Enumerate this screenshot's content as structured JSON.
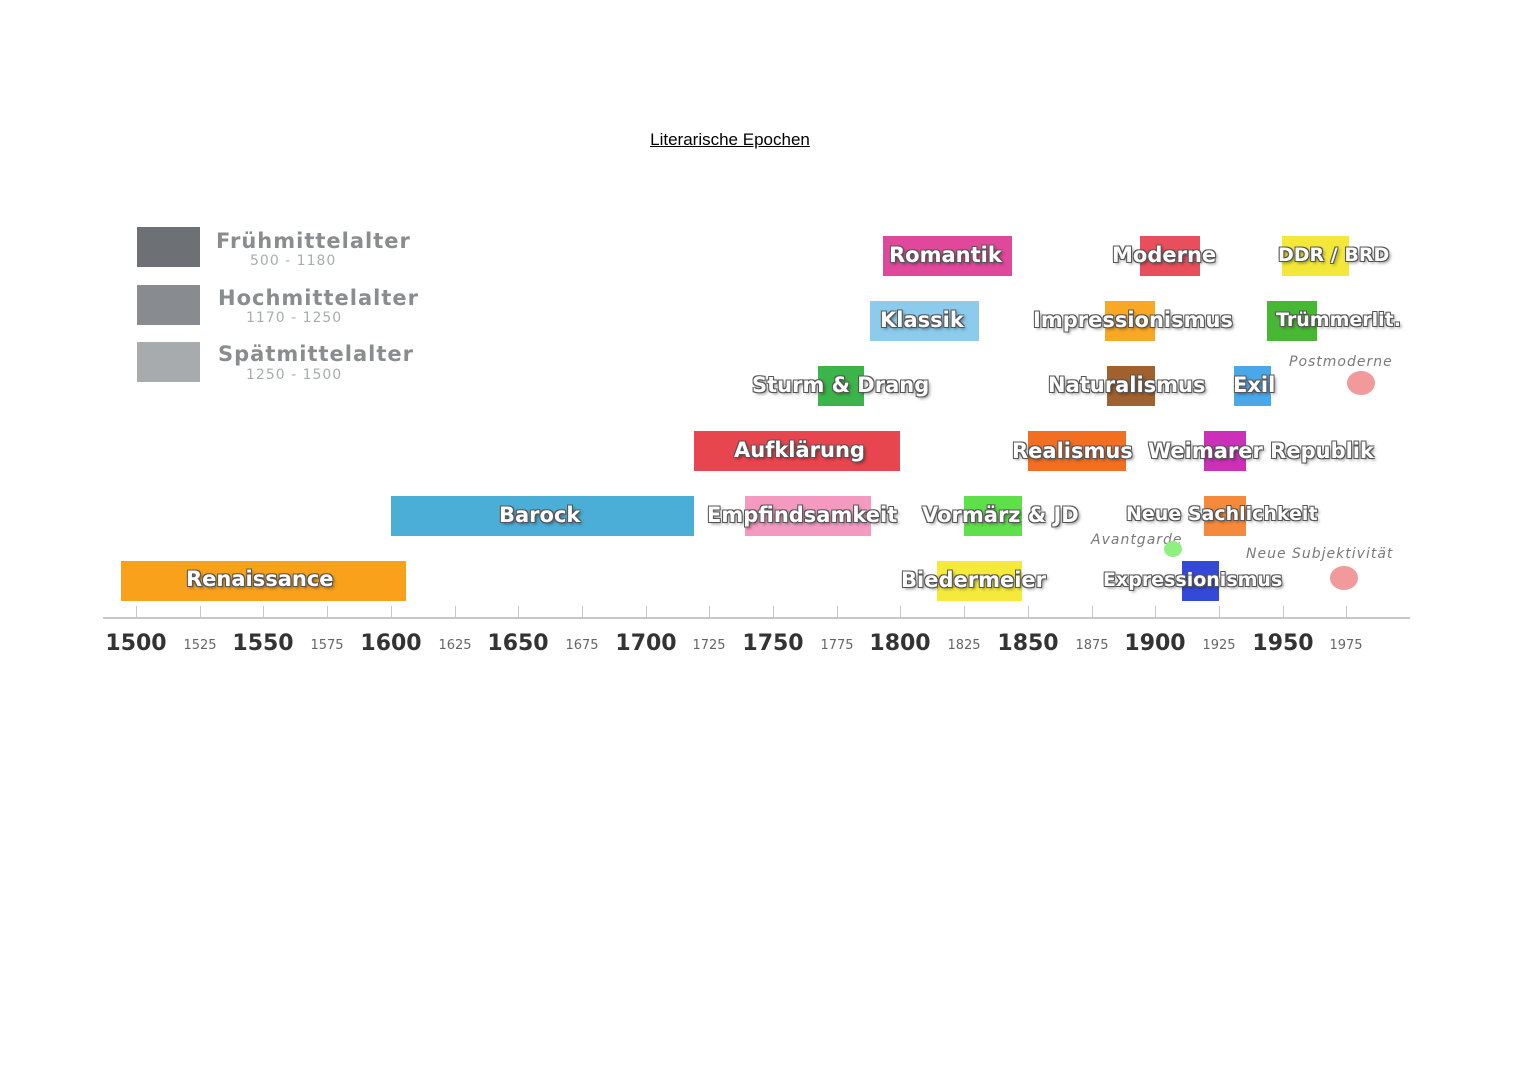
{
  "title": "Literarische Epochen",
  "legend": [
    {
      "name": "Frühmittelalter",
      "range": "500 - 1180",
      "color": "#6d7175"
    },
    {
      "name": "Hochmittelalter",
      "range": "1170 - 1250",
      "color": "#888c90"
    },
    {
      "name": "Spätmittelalter",
      "range": "1250 - 1500",
      "color": "#a7abae"
    }
  ],
  "epochs": {
    "renaissance": {
      "label": "Renaissance",
      "color": "#f9a11b"
    },
    "barock": {
      "label": "Barock",
      "color": "#4baed6"
    },
    "aufklaerung": {
      "label": "Aufklärung",
      "color": "#e8464e"
    },
    "empfindsamkeit": {
      "label": "Empfindsamkeit",
      "color": "#f49ac1"
    },
    "sturm_drang": {
      "label": "Sturm & Drang",
      "color": "#3bb54a"
    },
    "klassik": {
      "label": "Klassik",
      "color": "#8ccbec"
    },
    "romantik": {
      "label": "Romantik",
      "color": "#e0489b"
    },
    "biedermeier": {
      "label": "Biedermeier",
      "color": "#f5ea3b"
    },
    "vormaerz": {
      "label": "Vormärz & JD",
      "color": "#5ee04a"
    },
    "realismus": {
      "label": "Realismus",
      "color": "#f26f21"
    },
    "naturalismus": {
      "label": "Naturalismus",
      "color": "#a0612e"
    },
    "impressionismus": {
      "label": "Impressionismus",
      "color": "#f9a825"
    },
    "moderne": {
      "label": "Moderne",
      "color": "#e84e5c"
    },
    "expressionismus": {
      "label": "Expressionismus",
      "color": "#3549d9"
    },
    "neue_sachlichkeit": {
      "label": "Neue Sachlichkeit",
      "color": "#f58a3c"
    },
    "weimarer": {
      "label": "Weimarer Republik",
      "color": "#cc2fb8"
    },
    "exil": {
      "label": "Exil",
      "color": "#4aa8e8"
    },
    "truemmer": {
      "label": "Trümmerlit.",
      "color": "#47b833"
    },
    "ddr_brd": {
      "label": "DDR / BRD",
      "color": "#f3e73a"
    }
  },
  "annotations": {
    "avantgarde": "Avantgarde",
    "postmoderne": "Postmoderne",
    "neue_subjektivitaet": "Neue Subjektivität"
  },
  "axis": {
    "years": [
      "1500",
      "1525",
      "1550",
      "1575",
      "1600",
      "1625",
      "1650",
      "1675",
      "1700",
      "1725",
      "1750",
      "1775",
      "1800",
      "1825",
      "1850",
      "1875",
      "1900",
      "1925",
      "1950",
      "1975"
    ]
  }
}
